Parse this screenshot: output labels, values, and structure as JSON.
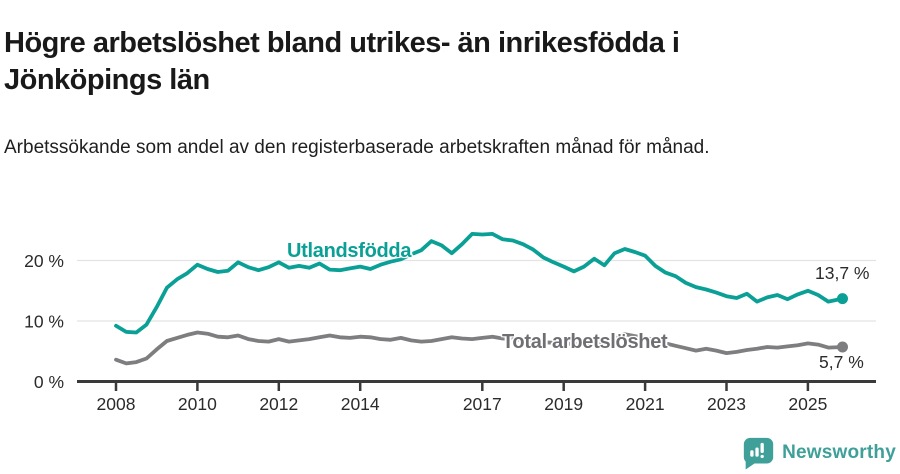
{
  "header": {
    "title": "Högre arbetslöshet bland utrikes- än inrikesfödda i Jönköpings län",
    "subtitle": "Arbetssökande som andel av den registerbaserade arbetskraften månad för månad."
  },
  "chart_data": {
    "type": "line",
    "title": "Högre arbetslöshet bland utrikes- än inrikesfödda i Jönköpings län",
    "subtitle": "Arbetssökande som andel av den registerbaserade arbetskraften månad för månad.",
    "grid": "horizontal",
    "legend_position": "inline-labels",
    "x_axis": {
      "range": [
        2007.9,
        2026.2
      ],
      "ticks": [
        2008,
        2010,
        2012,
        2014,
        2017,
        2019,
        2021,
        2023,
        2025
      ],
      "labels": [
        "2008",
        "2010",
        "2012",
        "2014",
        "2017",
        "2019",
        "2021",
        "2023",
        "2025"
      ]
    },
    "y_axis": {
      "range": [
        0,
        26
      ],
      "ticks": [
        0,
        10,
        20
      ],
      "labels": [
        "0 %",
        "10 %",
        "20 %"
      ],
      "unit": "%"
    },
    "series": [
      {
        "name": "Utlandsfödda",
        "color": "#0aa096",
        "end_label": "13,7 %",
        "end_value": 13.7,
        "points": [
          [
            2008.0,
            9.2
          ],
          [
            2008.25,
            8.2
          ],
          [
            2008.5,
            8.1
          ],
          [
            2008.75,
            9.4
          ],
          [
            2009.0,
            12.3
          ],
          [
            2009.25,
            15.5
          ],
          [
            2009.5,
            16.9
          ],
          [
            2009.75,
            17.9
          ],
          [
            2010.0,
            19.3
          ],
          [
            2010.25,
            18.6
          ],
          [
            2010.5,
            18.1
          ],
          [
            2010.75,
            18.3
          ],
          [
            2011.0,
            19.7
          ],
          [
            2011.25,
            18.9
          ],
          [
            2011.5,
            18.4
          ],
          [
            2011.75,
            18.9
          ],
          [
            2012.0,
            19.7
          ],
          [
            2012.25,
            18.8
          ],
          [
            2012.5,
            19.1
          ],
          [
            2012.75,
            18.8
          ],
          [
            2013.0,
            19.5
          ],
          [
            2013.25,
            18.5
          ],
          [
            2013.5,
            18.4
          ],
          [
            2013.75,
            18.7
          ],
          [
            2014.0,
            19.0
          ],
          [
            2014.25,
            18.6
          ],
          [
            2014.5,
            19.3
          ],
          [
            2014.75,
            19.8
          ],
          [
            2015.0,
            20.2
          ],
          [
            2015.25,
            21.0
          ],
          [
            2015.5,
            21.7
          ],
          [
            2015.75,
            23.2
          ],
          [
            2016.0,
            22.5
          ],
          [
            2016.25,
            21.2
          ],
          [
            2016.5,
            22.7
          ],
          [
            2016.75,
            24.4
          ],
          [
            2017.0,
            24.3
          ],
          [
            2017.25,
            24.4
          ],
          [
            2017.5,
            23.5
          ],
          [
            2017.75,
            23.3
          ],
          [
            2018.0,
            22.7
          ],
          [
            2018.25,
            21.8
          ],
          [
            2018.5,
            20.5
          ],
          [
            2018.75,
            19.7
          ],
          [
            2019.0,
            19.0
          ],
          [
            2019.25,
            18.2
          ],
          [
            2019.5,
            19.0
          ],
          [
            2019.75,
            20.3
          ],
          [
            2020.0,
            19.2
          ],
          [
            2020.25,
            21.2
          ],
          [
            2020.5,
            21.9
          ],
          [
            2020.75,
            21.4
          ],
          [
            2021.0,
            20.8
          ],
          [
            2021.25,
            19.1
          ],
          [
            2021.5,
            18.0
          ],
          [
            2021.75,
            17.4
          ],
          [
            2022.0,
            16.3
          ],
          [
            2022.25,
            15.6
          ],
          [
            2022.5,
            15.2
          ],
          [
            2022.75,
            14.7
          ],
          [
            2023.0,
            14.1
          ],
          [
            2023.25,
            13.8
          ],
          [
            2023.5,
            14.5
          ],
          [
            2023.75,
            13.2
          ],
          [
            2024.0,
            13.9
          ],
          [
            2024.25,
            14.3
          ],
          [
            2024.5,
            13.6
          ],
          [
            2024.75,
            14.4
          ],
          [
            2025.0,
            15.0
          ],
          [
            2025.25,
            14.3
          ],
          [
            2025.5,
            13.2
          ],
          [
            2025.85,
            13.7
          ]
        ]
      },
      {
        "name": "Total arbetslöshet",
        "color": "#7e7e81",
        "end_label": "5,7 %",
        "end_value": 5.7,
        "points": [
          [
            2008.0,
            3.6
          ],
          [
            2008.25,
            3.0
          ],
          [
            2008.5,
            3.2
          ],
          [
            2008.75,
            3.8
          ],
          [
            2009.0,
            5.3
          ],
          [
            2009.25,
            6.7
          ],
          [
            2009.5,
            7.2
          ],
          [
            2009.75,
            7.7
          ],
          [
            2010.0,
            8.1
          ],
          [
            2010.25,
            7.9
          ],
          [
            2010.5,
            7.4
          ],
          [
            2010.75,
            7.3
          ],
          [
            2011.0,
            7.6
          ],
          [
            2011.25,
            7.0
          ],
          [
            2011.5,
            6.7
          ],
          [
            2011.75,
            6.6
          ],
          [
            2012.0,
            7.0
          ],
          [
            2012.25,
            6.6
          ],
          [
            2012.5,
            6.8
          ],
          [
            2012.75,
            7.0
          ],
          [
            2013.0,
            7.3
          ],
          [
            2013.25,
            7.6
          ],
          [
            2013.5,
            7.3
          ],
          [
            2013.75,
            7.2
          ],
          [
            2014.0,
            7.4
          ],
          [
            2014.25,
            7.3
          ],
          [
            2014.5,
            7.0
          ],
          [
            2014.75,
            6.9
          ],
          [
            2015.0,
            7.2
          ],
          [
            2015.25,
            6.8
          ],
          [
            2015.5,
            6.6
          ],
          [
            2015.75,
            6.7
          ],
          [
            2016.0,
            7.0
          ],
          [
            2016.25,
            7.3
          ],
          [
            2016.5,
            7.1
          ],
          [
            2016.75,
            7.0
          ],
          [
            2017.0,
            7.2
          ],
          [
            2017.25,
            7.4
          ],
          [
            2017.5,
            7.1
          ],
          [
            2017.75,
            7.0
          ],
          [
            2018.0,
            6.8
          ],
          [
            2018.25,
            6.6
          ],
          [
            2018.5,
            6.5
          ],
          [
            2018.75,
            6.4
          ],
          [
            2019.0,
            6.3
          ],
          [
            2019.25,
            6.2
          ],
          [
            2019.5,
            6.3
          ],
          [
            2019.75,
            6.4
          ],
          [
            2020.0,
            6.6
          ],
          [
            2020.25,
            7.4
          ],
          [
            2020.5,
            7.8
          ],
          [
            2020.75,
            7.5
          ],
          [
            2021.0,
            7.2
          ],
          [
            2021.25,
            6.8
          ],
          [
            2021.5,
            6.3
          ],
          [
            2021.75,
            5.9
          ],
          [
            2022.0,
            5.5
          ],
          [
            2022.25,
            5.1
          ],
          [
            2022.5,
            5.4
          ],
          [
            2022.75,
            5.1
          ],
          [
            2023.0,
            4.7
          ],
          [
            2023.25,
            4.9
          ],
          [
            2023.5,
            5.2
          ],
          [
            2023.75,
            5.4
          ],
          [
            2024.0,
            5.7
          ],
          [
            2024.25,
            5.6
          ],
          [
            2024.5,
            5.8
          ],
          [
            2024.75,
            6.0
          ],
          [
            2025.0,
            6.3
          ],
          [
            2025.25,
            6.1
          ],
          [
            2025.5,
            5.6
          ],
          [
            2025.85,
            5.7
          ]
        ]
      }
    ]
  },
  "footer": {
    "brand": "Newsworthy",
    "brand_color": "#3fa099",
    "logo_icon": "bar-chart-speech-bubble-icon"
  }
}
